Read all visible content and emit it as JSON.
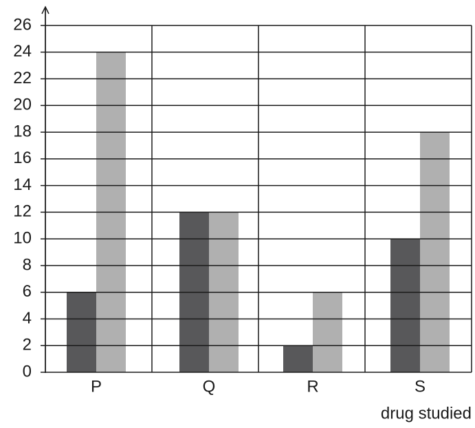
{
  "chart_data": {
    "type": "bar",
    "x_label": "drug studied",
    "categories": [
      "P",
      "Q",
      "R",
      "S"
    ],
    "series": [
      {
        "color": "#58585a",
        "values": [
          6,
          12,
          2,
          10
        ]
      },
      {
        "color": "#b0b0b0",
        "values": [
          24,
          12,
          6,
          18
        ]
      }
    ],
    "ylim": [
      0,
      26
    ],
    "yticks": [
      0,
      2,
      4,
      6,
      8,
      10,
      12,
      14,
      16,
      18,
      20,
      22,
      24,
      26
    ],
    "grid": true
  }
}
